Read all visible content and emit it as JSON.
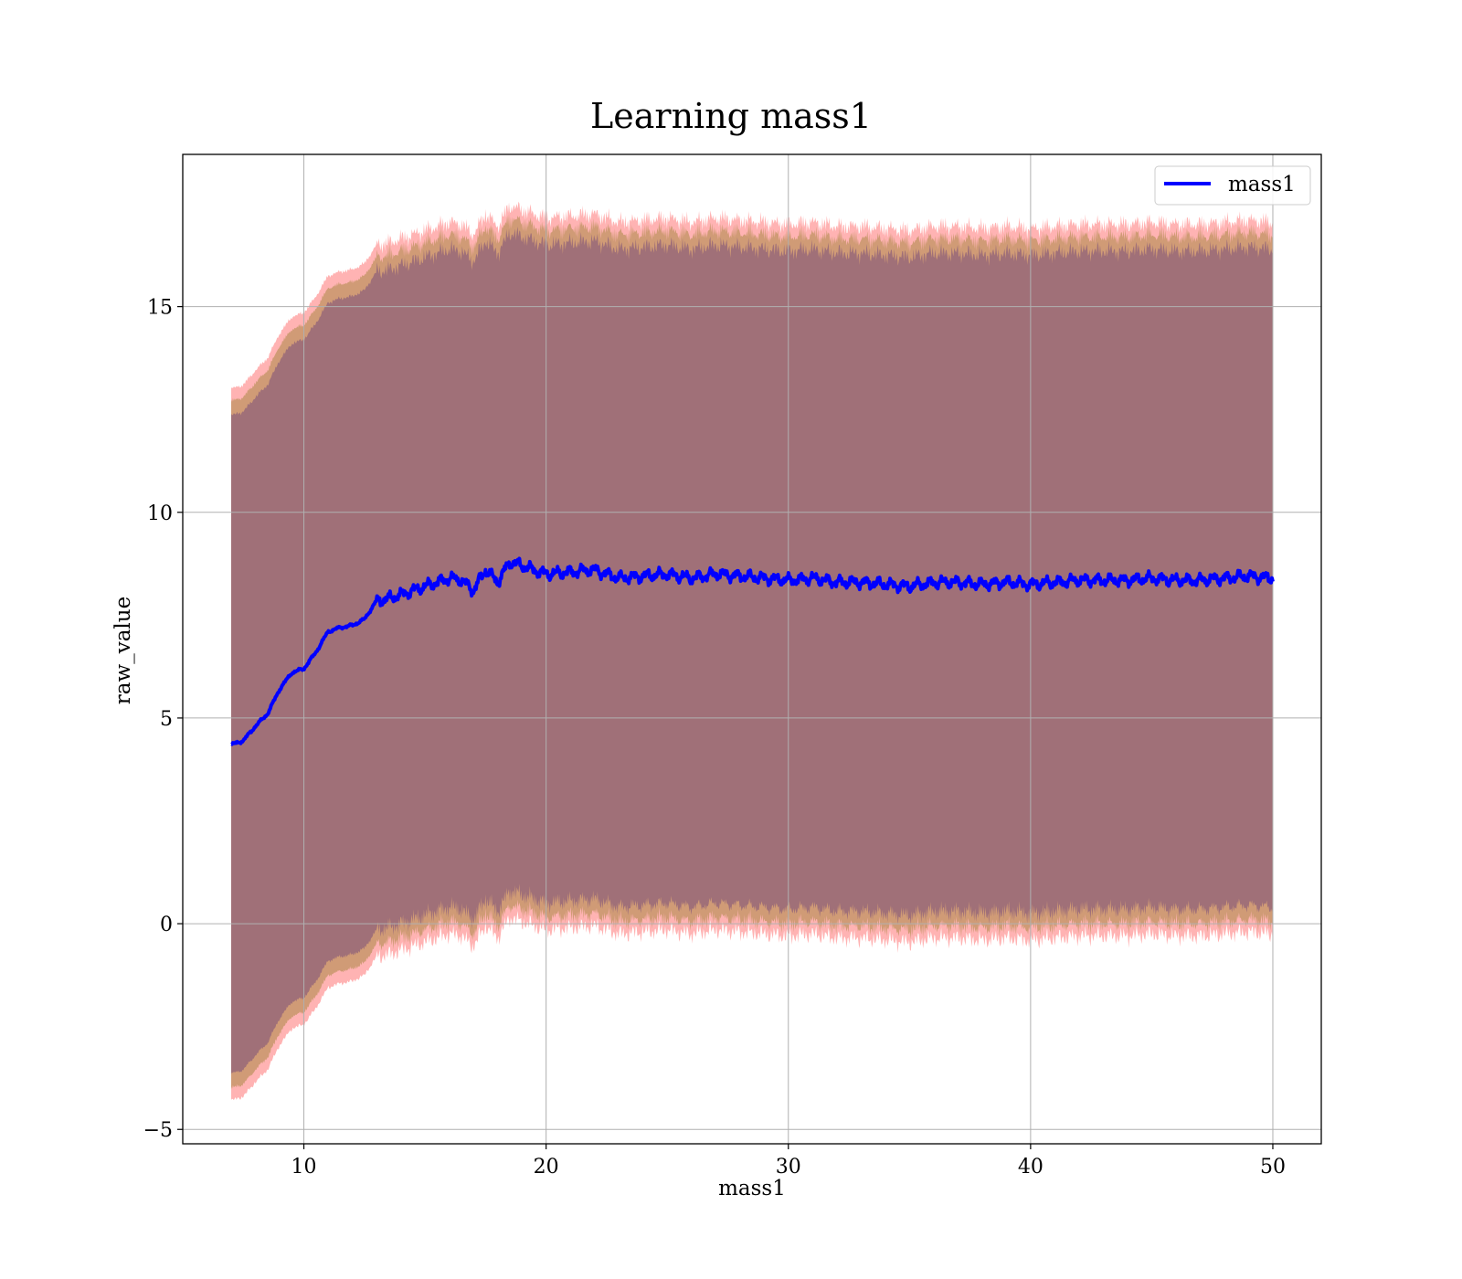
{
  "chart_data": {
    "type": "line",
    "title": "Learning mass1",
    "xlabel": "mass1",
    "ylabel": "raw_value",
    "xlim": [
      5,
      52
    ],
    "ylim": [
      -5.35,
      18.7
    ],
    "xticks": [
      10,
      20,
      30,
      40,
      50
    ],
    "yticks": [
      -5,
      0,
      5,
      10,
      15
    ],
    "xtick_labels": [
      "10",
      "20",
      "30",
      "40",
      "50"
    ],
    "ytick_labels": [
      "−5",
      "0",
      "5",
      "10",
      "15"
    ],
    "grid": true,
    "legend": {
      "position": "top-right",
      "entries": [
        "mass1"
      ]
    },
    "colors": {
      "line": "#0000ff",
      "band_outer": "#ff9a9a",
      "band_middle": "#c8966b",
      "band_inner": "#a07078",
      "grid": "#b0b0b0"
    },
    "series": [
      {
        "name": "mass1",
        "x": [
          7,
          7.5,
          8,
          8.5,
          9,
          9.5,
          10,
          10.5,
          11,
          11.5,
          12,
          12.5,
          13,
          13.5,
          14,
          14.5,
          15,
          15.5,
          16,
          16.5,
          17,
          17.5,
          18,
          18.5,
          19,
          19.5,
          20,
          21,
          22,
          23,
          24,
          25,
          26,
          27,
          28,
          29,
          30,
          31,
          32,
          33,
          34,
          35,
          36,
          37,
          38,
          39,
          40,
          41,
          42,
          43,
          44,
          45,
          46,
          47,
          48,
          49,
          50
        ],
        "y": [
          4.35,
          4.45,
          4.8,
          5.1,
          5.7,
          6.1,
          6.2,
          6.6,
          7.1,
          7.2,
          7.25,
          7.4,
          7.85,
          7.9,
          8.0,
          8.1,
          8.2,
          8.3,
          8.4,
          8.35,
          8.1,
          8.6,
          8.3,
          8.8,
          8.7,
          8.6,
          8.5,
          8.55,
          8.6,
          8.4,
          8.45,
          8.5,
          8.4,
          8.5,
          8.45,
          8.4,
          8.35,
          8.4,
          8.3,
          8.3,
          8.25,
          8.2,
          8.3,
          8.3,
          8.25,
          8.3,
          8.25,
          8.3,
          8.35,
          8.35,
          8.35,
          8.4,
          8.35,
          8.35,
          8.4,
          8.45,
          8.4
        ]
      }
    ]
  }
}
